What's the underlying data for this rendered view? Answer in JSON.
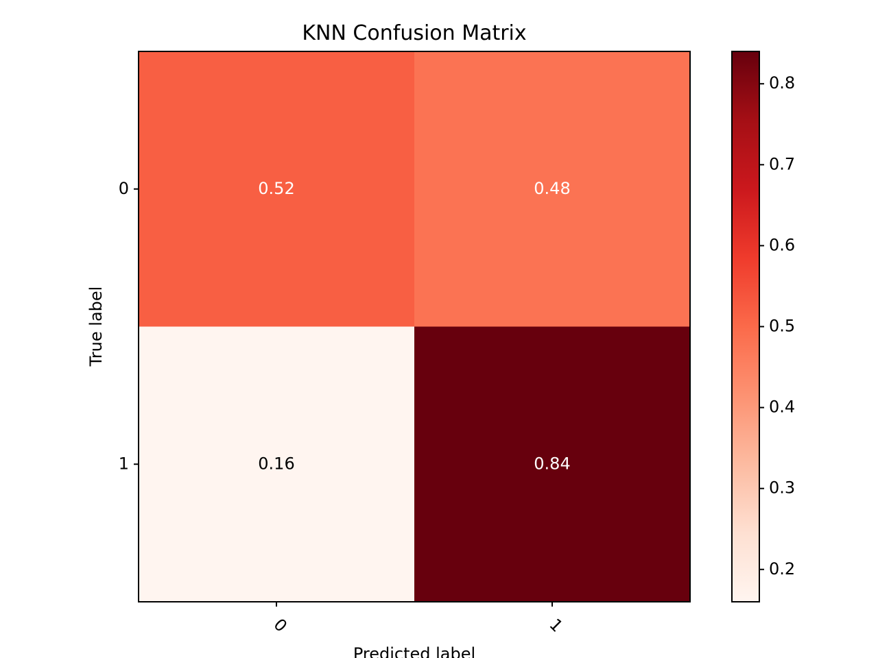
{
  "chart_data": {
    "type": "heatmap",
    "title": "KNN Confusion Matrix",
    "xlabel": "Predicted label",
    "ylabel": "True label",
    "x_categories": [
      "0",
      "1"
    ],
    "y_categories": [
      "0",
      "1"
    ],
    "values": [
      [
        0.52,
        0.48
      ],
      [
        0.16,
        0.84
      ]
    ],
    "value_labels": [
      [
        "0.52",
        "0.48"
      ],
      [
        "0.16",
        "0.84"
      ]
    ],
    "colormap": "Reds",
    "colorbar": {
      "range": [
        0.16,
        0.84
      ],
      "ticks": [
        0.2,
        0.3,
        0.4,
        0.5,
        0.6,
        0.7,
        0.8
      ],
      "tick_labels": [
        "0.2",
        "0.3",
        "0.4",
        "0.5",
        "0.6",
        "0.7",
        "0.8"
      ]
    },
    "x_tick_rotation": 45,
    "colors": {
      "text_dark": "#000000",
      "text_light": "#ffffff"
    }
  }
}
